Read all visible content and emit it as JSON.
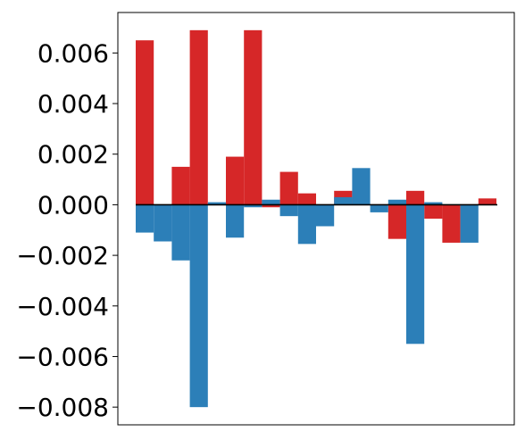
{
  "chart_data": {
    "type": "bar",
    "title": "",
    "xlabel": "",
    "ylabel": "",
    "ylim": [
      -0.0087,
      0.0076
    ],
    "yticks": [
      {
        "value": 0.006,
        "label": "0.006"
      },
      {
        "value": 0.004,
        "label": "0.004"
      },
      {
        "value": 0.002,
        "label": "0.002"
      },
      {
        "value": 0.0,
        "label": "0.000"
      },
      {
        "value": -0.002,
        "label": "−0.002"
      },
      {
        "value": -0.004,
        "label": "−0.004"
      },
      {
        "value": -0.006,
        "label": "−0.006"
      },
      {
        "value": -0.008,
        "label": "−0.008"
      }
    ],
    "xticks_visible": false,
    "grid": false,
    "legend": "none",
    "n_slots": 20,
    "series": [
      {
        "color": "#d62728",
        "values": [
          0.0065,
          0.0,
          0.0015,
          0.0069,
          0.0,
          0.0019,
          0.0069,
          -0.0001,
          0.0013,
          0.00045,
          0.0,
          0.00055,
          0.0,
          0.0,
          -0.00135,
          0.00055,
          -0.00055,
          -0.0015,
          0.0,
          0.00025
        ]
      },
      {
        "color": "#2c7fb8",
        "values": [
          -0.0011,
          -0.00145,
          -0.0022,
          -0.008,
          0.0001,
          -0.0013,
          -0.0001,
          0.0002,
          -0.00045,
          -0.00155,
          -0.00085,
          0.0003,
          0.00145,
          -0.0003,
          0.0002,
          -0.0055,
          0.0001,
          0.0,
          -0.0015,
          0.0
        ]
      }
    ],
    "zero_line_color": "#000000"
  }
}
